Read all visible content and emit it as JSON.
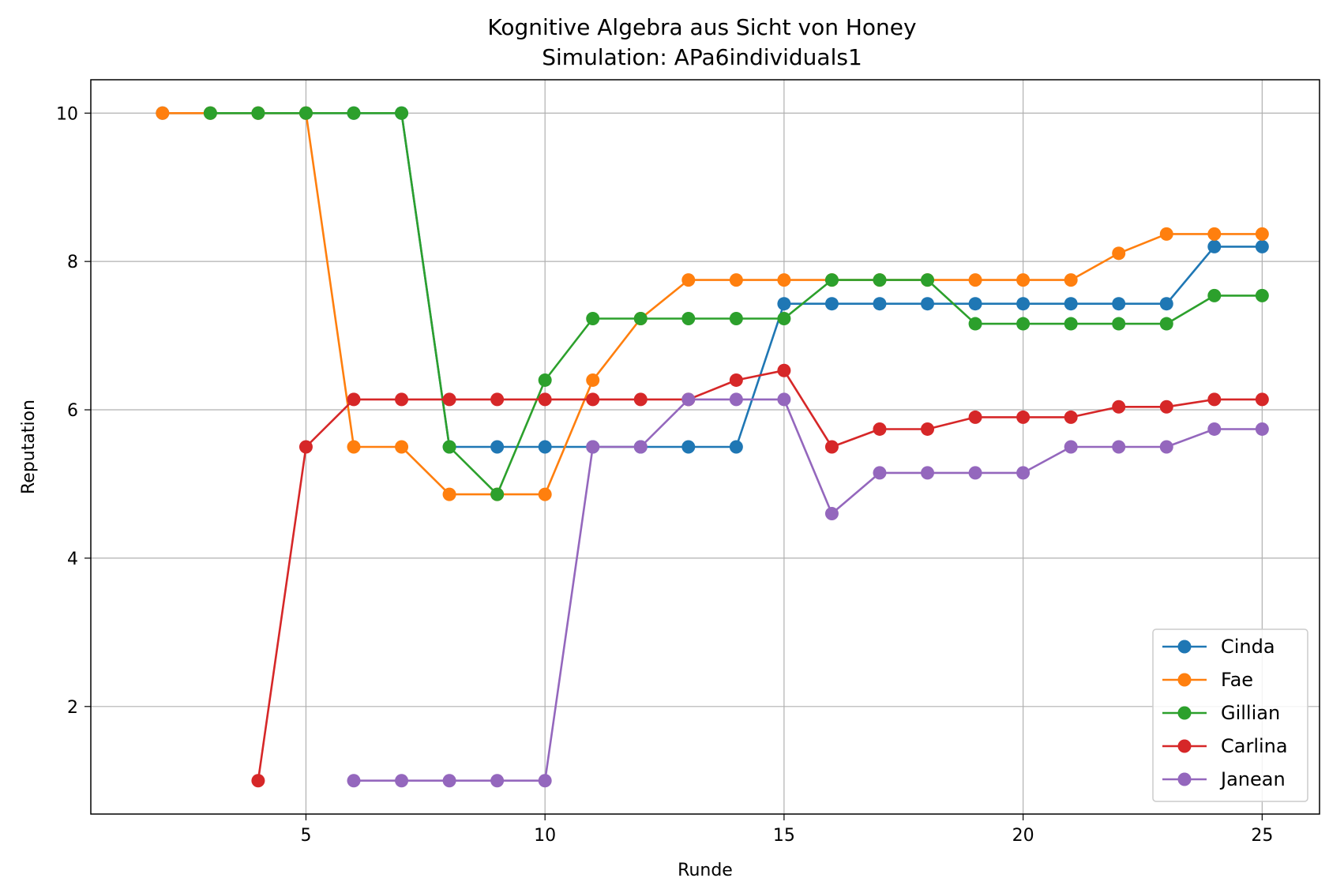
{
  "chart_data": {
    "type": "line",
    "title": "Kognitive Algebra aus Sicht von Honey",
    "subtitle": "Simulation: APa6individuals1",
    "xlabel": "Runde",
    "ylabel": "Reputation",
    "xlim": [
      0.5,
      26.2
    ],
    "ylim": [
      0.55,
      10.45
    ],
    "xticks": [
      5,
      10,
      15,
      20,
      25
    ],
    "yticks": [
      2,
      4,
      6,
      8,
      10
    ],
    "grid": true,
    "legend_position": "lower-right",
    "series": [
      {
        "name": "Cinda",
        "color": "#1f77b4",
        "points": [
          [
            2,
            10
          ],
          [
            3,
            10
          ],
          [
            4,
            10
          ],
          [
            5,
            10
          ],
          [
            6,
            10
          ],
          [
            7,
            10
          ],
          [
            8,
            5.5
          ],
          [
            9,
            5.5
          ],
          [
            10,
            5.5
          ],
          [
            11,
            5.5
          ],
          [
            12,
            5.5
          ],
          [
            13,
            5.5
          ],
          [
            14,
            5.5
          ],
          [
            15,
            7.43
          ],
          [
            16,
            7.43
          ],
          [
            17,
            7.43
          ],
          [
            18,
            7.43
          ],
          [
            19,
            7.43
          ],
          [
            20,
            7.43
          ],
          [
            21,
            7.43
          ],
          [
            22,
            7.43
          ],
          [
            23,
            7.43
          ],
          [
            24,
            8.2
          ],
          [
            25,
            8.2
          ]
        ]
      },
      {
        "name": "Fae",
        "color": "#ff7f0e",
        "points": [
          [
            2,
            10
          ],
          [
            3,
            10
          ],
          [
            4,
            10
          ],
          [
            5,
            10
          ],
          [
            6,
            5.5
          ],
          [
            7,
            5.5
          ],
          [
            8,
            4.86
          ],
          [
            9,
            4.86
          ],
          [
            10,
            4.86
          ],
          [
            11,
            6.4
          ],
          [
            12,
            7.23
          ],
          [
            13,
            7.75
          ],
          [
            14,
            7.75
          ],
          [
            15,
            7.75
          ],
          [
            16,
            7.75
          ],
          [
            17,
            7.75
          ],
          [
            18,
            7.75
          ],
          [
            19,
            7.75
          ],
          [
            20,
            7.75
          ],
          [
            21,
            7.75
          ],
          [
            22,
            8.11
          ],
          [
            23,
            8.37
          ],
          [
            24,
            8.37
          ],
          [
            25,
            8.37
          ]
        ]
      },
      {
        "name": "Gillian",
        "color": "#2ca02c",
        "points": [
          [
            3,
            10
          ],
          [
            4,
            10
          ],
          [
            5,
            10
          ],
          [
            6,
            10
          ],
          [
            7,
            10
          ],
          [
            8,
            5.5
          ],
          [
            9,
            4.86
          ],
          [
            10,
            6.4
          ],
          [
            11,
            7.23
          ],
          [
            12,
            7.23
          ],
          [
            13,
            7.23
          ],
          [
            14,
            7.23
          ],
          [
            15,
            7.23
          ],
          [
            16,
            7.75
          ],
          [
            17,
            7.75
          ],
          [
            18,
            7.75
          ],
          [
            19,
            7.16
          ],
          [
            20,
            7.16
          ],
          [
            21,
            7.16
          ],
          [
            22,
            7.16
          ],
          [
            23,
            7.16
          ],
          [
            24,
            7.54
          ],
          [
            25,
            7.54
          ]
        ]
      },
      {
        "name": "Carlina",
        "color": "#d62728",
        "points": [
          [
            4,
            1
          ],
          [
            5,
            5.5
          ],
          [
            6,
            6.14
          ],
          [
            7,
            6.14
          ],
          [
            8,
            6.14
          ],
          [
            9,
            6.14
          ],
          [
            10,
            6.14
          ],
          [
            11,
            6.14
          ],
          [
            12,
            6.14
          ],
          [
            13,
            6.14
          ],
          [
            14,
            6.4
          ],
          [
            15,
            6.53
          ],
          [
            16,
            5.5
          ],
          [
            17,
            5.74
          ],
          [
            18,
            5.74
          ],
          [
            19,
            5.9
          ],
          [
            20,
            5.9
          ],
          [
            21,
            5.9
          ],
          [
            22,
            6.04
          ],
          [
            23,
            6.04
          ],
          [
            24,
            6.14
          ],
          [
            25,
            6.14
          ]
        ]
      },
      {
        "name": "Janean",
        "color": "#9467bd",
        "points": [
          [
            6,
            1
          ],
          [
            7,
            1
          ],
          [
            8,
            1
          ],
          [
            9,
            1
          ],
          [
            10,
            1
          ],
          [
            11,
            5.5
          ],
          [
            12,
            5.5
          ],
          [
            13,
            6.14
          ],
          [
            14,
            6.14
          ],
          [
            15,
            6.14
          ],
          [
            16,
            4.6
          ],
          [
            17,
            5.15
          ],
          [
            18,
            5.15
          ],
          [
            19,
            5.15
          ],
          [
            20,
            5.15
          ],
          [
            21,
            5.5
          ],
          [
            22,
            5.5
          ],
          [
            23,
            5.5
          ],
          [
            24,
            5.74
          ],
          [
            25,
            5.74
          ]
        ]
      }
    ]
  }
}
